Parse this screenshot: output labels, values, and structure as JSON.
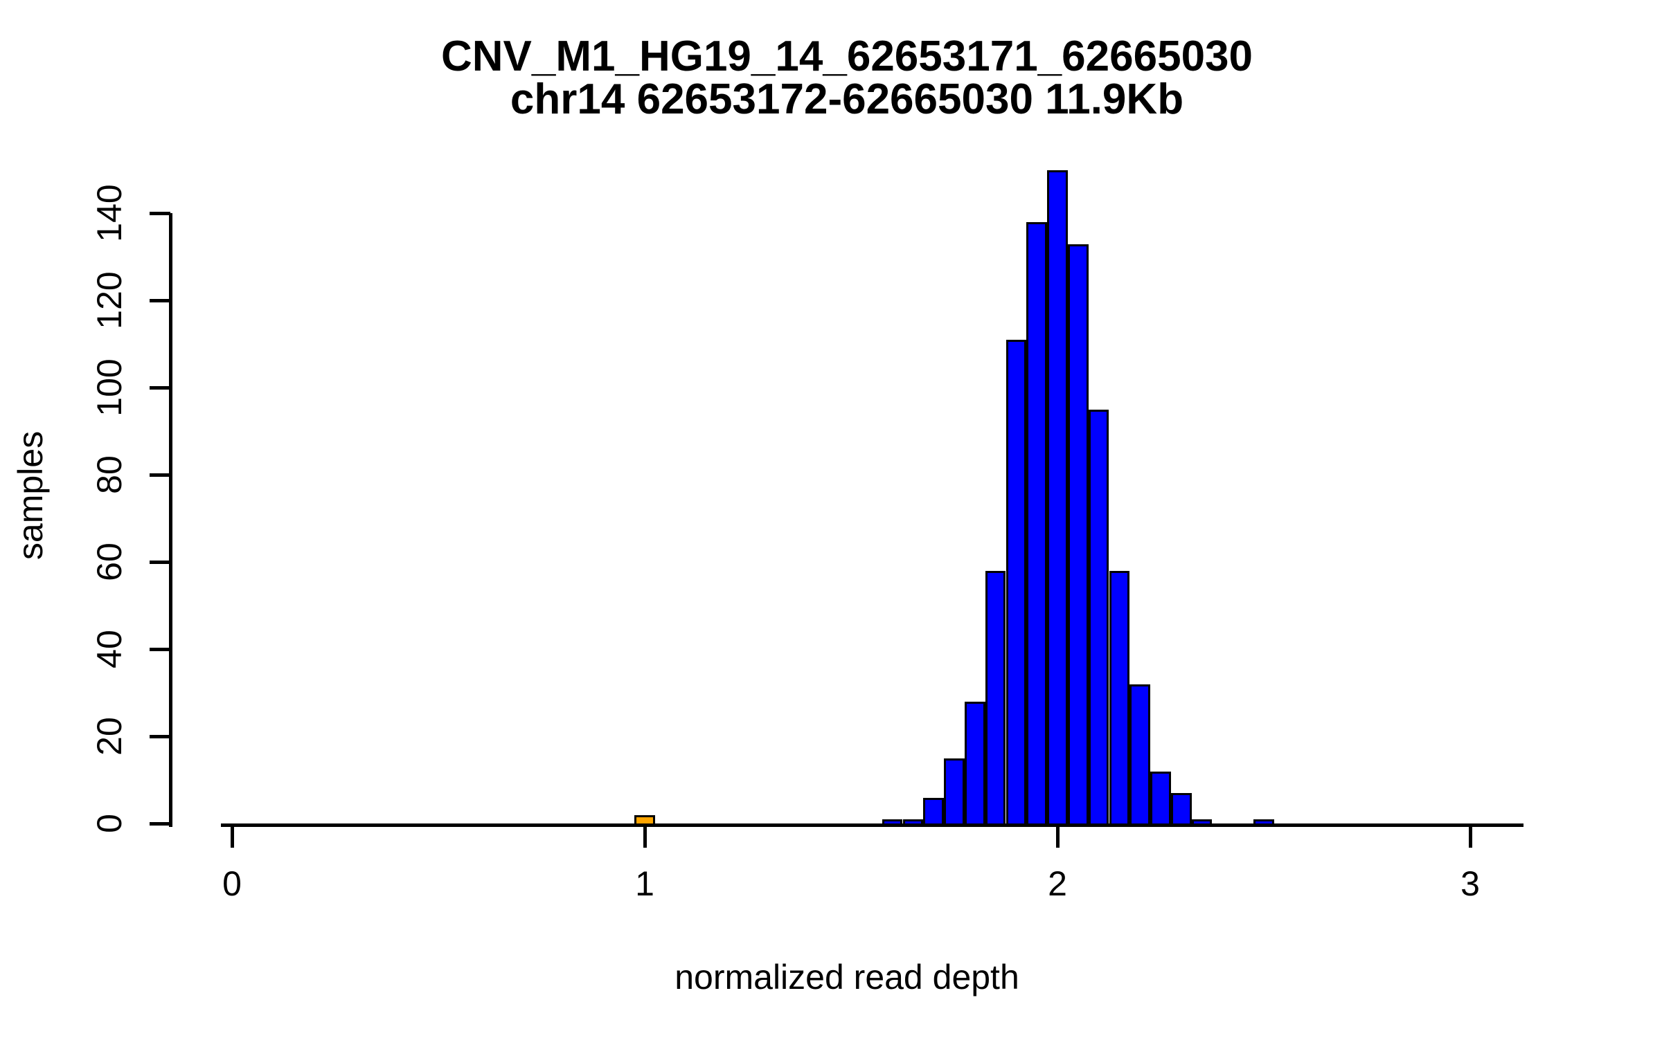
{
  "title": {
    "line1": "CNV_M1_HG19_14_62653171_62665030",
    "line2": "chr14 62653172-62665030 11.9Kb"
  },
  "axes": {
    "x_label": "normalized read depth",
    "y_label": "samples"
  },
  "chart_data": {
    "type": "bar",
    "subtype": "histogram",
    "title": "CNV_M1_HG19_14_62653171_62665030",
    "subtitle": "chr14 62653172-62665030 11.9Kb",
    "xlabel": "normalized read depth",
    "ylabel": "samples",
    "xlim": [
      0,
      3.1
    ],
    "ylim": [
      0,
      150
    ],
    "x_tick_labels": [
      "0",
      "1",
      "2",
      "3"
    ],
    "x_tick_values": [
      0,
      1,
      2,
      3
    ],
    "y_tick_labels": [
      "0",
      "20",
      "40",
      "60",
      "80",
      "100",
      "120",
      "140"
    ],
    "y_tick_values": [
      0,
      20,
      40,
      60,
      80,
      100,
      120,
      140
    ],
    "grid": "off",
    "legend": "none",
    "bin_width": 0.05,
    "colors": {
      "default_fill": "#0000FF",
      "highlight_fill": "#FFA500",
      "stroke": "#000000",
      "background": "#FFFFFF",
      "text": "#000000"
    },
    "highlighted_bin_center": 1.0,
    "bars": [
      {
        "center": 1.0,
        "count": 2,
        "color": "#FFA500"
      },
      {
        "center": 1.6,
        "count": 1,
        "color": "#0000FF"
      },
      {
        "center": 1.65,
        "count": 1,
        "color": "#0000FF"
      },
      {
        "center": 1.7,
        "count": 6,
        "color": "#0000FF"
      },
      {
        "center": 1.75,
        "count": 15,
        "color": "#0000FF"
      },
      {
        "center": 1.8,
        "count": 28,
        "color": "#0000FF"
      },
      {
        "center": 1.85,
        "count": 58,
        "color": "#0000FF"
      },
      {
        "center": 1.9,
        "count": 111,
        "color": "#0000FF"
      },
      {
        "center": 1.95,
        "count": 138,
        "color": "#0000FF"
      },
      {
        "center": 2.0,
        "count": 150,
        "color": "#0000FF"
      },
      {
        "center": 2.05,
        "count": 133,
        "color": "#0000FF"
      },
      {
        "center": 2.1,
        "count": 95,
        "color": "#0000FF"
      },
      {
        "center": 2.15,
        "count": 58,
        "color": "#0000FF"
      },
      {
        "center": 2.2,
        "count": 32,
        "color": "#0000FF"
      },
      {
        "center": 2.25,
        "count": 12,
        "color": "#0000FF"
      },
      {
        "center": 2.3,
        "count": 7,
        "color": "#0000FF"
      },
      {
        "center": 2.35,
        "count": 1,
        "color": "#0000FF"
      },
      {
        "center": 2.5,
        "count": 1,
        "color": "#0000FF"
      }
    ]
  }
}
